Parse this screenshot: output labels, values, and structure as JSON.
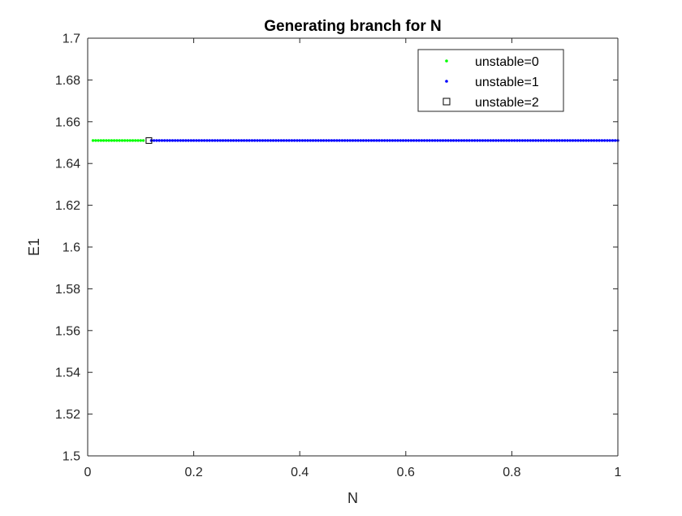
{
  "chart_data": {
    "type": "scatter",
    "title": "Generating branch for N",
    "xlabel": "N",
    "ylabel": "E1",
    "xlim": [
      0,
      1
    ],
    "ylim": [
      1.5,
      1.7
    ],
    "xticks": [
      "0",
      "0.2",
      "0.4",
      "0.6",
      "0.8",
      "1"
    ],
    "yticks": [
      "1.5",
      "1.52",
      "1.54",
      "1.56",
      "1.58",
      "1.6",
      "1.62",
      "1.64",
      "1.66",
      "1.68",
      "1.7"
    ],
    "legend_position": "top-right",
    "grid": false,
    "series": [
      {
        "name": "unstable=0",
        "marker": "dot",
        "color": "#00ff00",
        "x_start": 0.01,
        "x_end": 0.105,
        "step": 0.005,
        "y": 1.651
      },
      {
        "name": "unstable=1",
        "marker": "dot",
        "color": "#0000ff",
        "x_start": 0.12,
        "x_end": 1.0,
        "step": 0.005,
        "y": 1.651
      },
      {
        "name": "unstable=2",
        "marker": "square",
        "color": "#000000",
        "points": [
          [
            0.1155,
            1.651
          ]
        ]
      }
    ]
  }
}
